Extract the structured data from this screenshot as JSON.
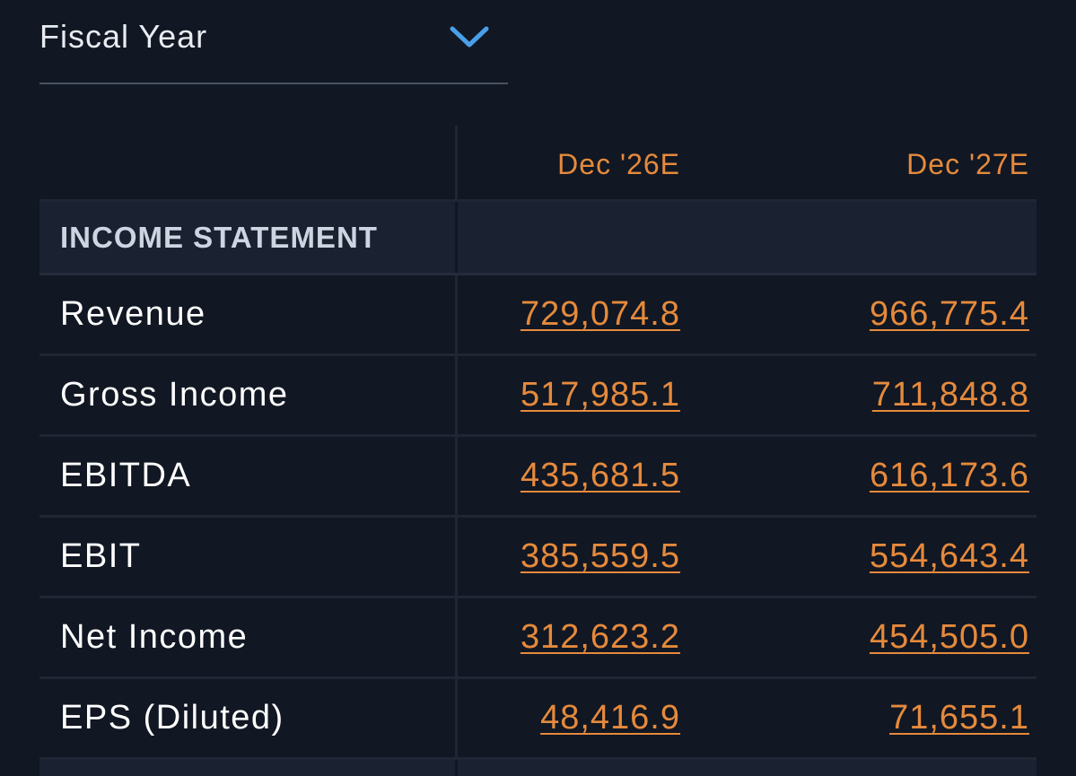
{
  "selector": {
    "label": "Fiscal Year",
    "icon": "chevron-down-icon",
    "accent": "#4a9fe8"
  },
  "table": {
    "columns": [
      "Dec '26E",
      "Dec '27E"
    ],
    "section_title": "INCOME STATEMENT",
    "rows": [
      {
        "label": "Revenue",
        "v1": "729,074.8",
        "v2": "966,775.4"
      },
      {
        "label": "Gross Income",
        "v1": "517,985.1",
        "v2": "711,848.8"
      },
      {
        "label": "EBITDA",
        "v1": "435,681.5",
        "v2": "616,173.6"
      },
      {
        "label": "EBIT",
        "v1": "385,559.5",
        "v2": "554,643.4"
      },
      {
        "label": "Net Income",
        "v1": "312,623.2",
        "v2": "454,505.0"
      },
      {
        "label": "EPS (Diluted)",
        "v1": "48,416.9",
        "v2": "71,655.1"
      }
    ]
  },
  "colors": {
    "background": "#111723",
    "value": "#e58a3c",
    "section_bg": "#1a2130"
  }
}
